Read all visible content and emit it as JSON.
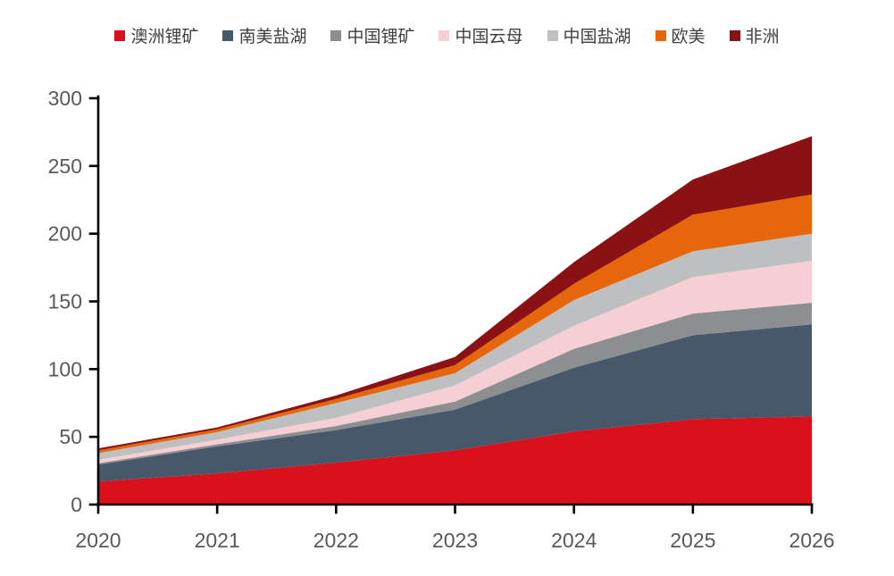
{
  "chart_data": {
    "type": "area",
    "stacked": true,
    "title": "",
    "xlabel": "",
    "ylabel": "",
    "x": [
      2020,
      2021,
      2022,
      2023,
      2024,
      2025,
      2026
    ],
    "series": [
      {
        "name": "澳洲锂矿",
        "color": "#d8111c",
        "values": [
          17,
          23,
          31,
          40,
          54,
          63,
          65
        ]
      },
      {
        "name": "南美盐湖",
        "color": "#46586a",
        "values": [
          12.5,
          20,
          24,
          30,
          47,
          62,
          68
        ]
      },
      {
        "name": "中国锂矿",
        "color": "#8c8e90",
        "values": [
          1,
          1.5,
          3,
          6,
          14,
          16,
          16
        ]
      },
      {
        "name": "中国云母",
        "color": "#f5cfd3",
        "values": [
          2.5,
          3.5,
          6,
          12,
          17,
          27,
          31
        ]
      },
      {
        "name": "中国盐湖",
        "color": "#bdbfc1",
        "values": [
          5,
          5.5,
          11,
          9,
          19,
          19,
          20
        ]
      },
      {
        "name": "欧美",
        "color": "#e5660b",
        "values": [
          2,
          2,
          3,
          6,
          12,
          27,
          29
        ]
      },
      {
        "name": "非洲",
        "color": "#8a1114",
        "values": [
          1.5,
          1.5,
          2.5,
          6,
          16,
          26,
          43
        ]
      }
    ],
    "ylim": [
      0,
      300
    ],
    "ytick_step": 50,
    "yticks": [
      0,
      50,
      100,
      150,
      200,
      250,
      300
    ],
    "grid": false,
    "legend_position": "top",
    "axis_color": "#000000",
    "tick_label_color": "#595959"
  }
}
